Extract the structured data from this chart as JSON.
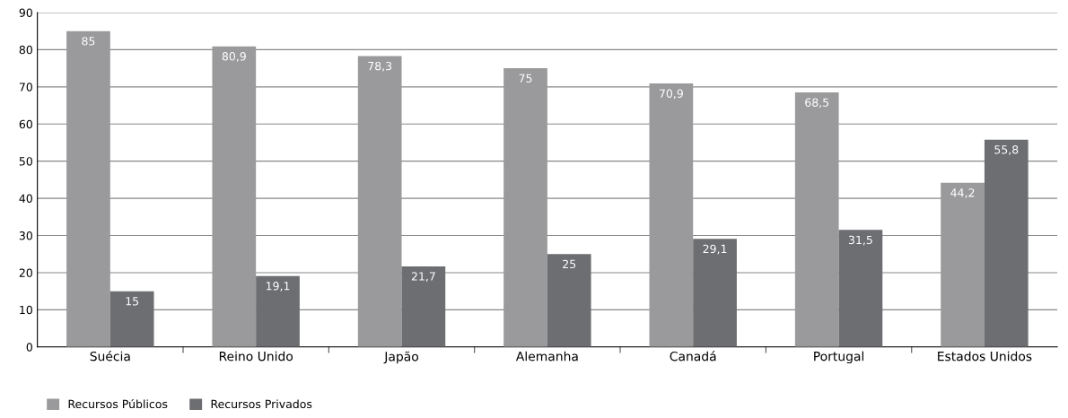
{
  "chart_data": {
    "type": "bar",
    "categories": [
      "Suécia",
      "Reino Unido",
      "Japão",
      "Alemanha",
      "Canadá",
      "Portugal",
      "Estados Unidos"
    ],
    "series": [
      {
        "name": "Recursos Públicos",
        "color": "#9a9a9c",
        "values": [
          85,
          80.9,
          78.3,
          75,
          70.9,
          68.5,
          44.2
        ],
        "value_labels": [
          "85",
          "80,9",
          "78,3",
          "75",
          "70,9",
          "68,5",
          "44,2"
        ]
      },
      {
        "name": "Recursos Privados",
        "color": "#6d6e71",
        "values": [
          15,
          19.1,
          21.7,
          25,
          29.1,
          31.5,
          55.8
        ],
        "value_labels": [
          "15",
          "19,1",
          "21,7",
          "25",
          "29,1",
          "31,5",
          "55,8"
        ]
      }
    ],
    "ylim": [
      0,
      90
    ],
    "yticks": [
      0,
      10,
      20,
      30,
      40,
      50,
      60,
      70,
      80,
      90
    ],
    "grid": "y",
    "legend": "bottom left"
  }
}
